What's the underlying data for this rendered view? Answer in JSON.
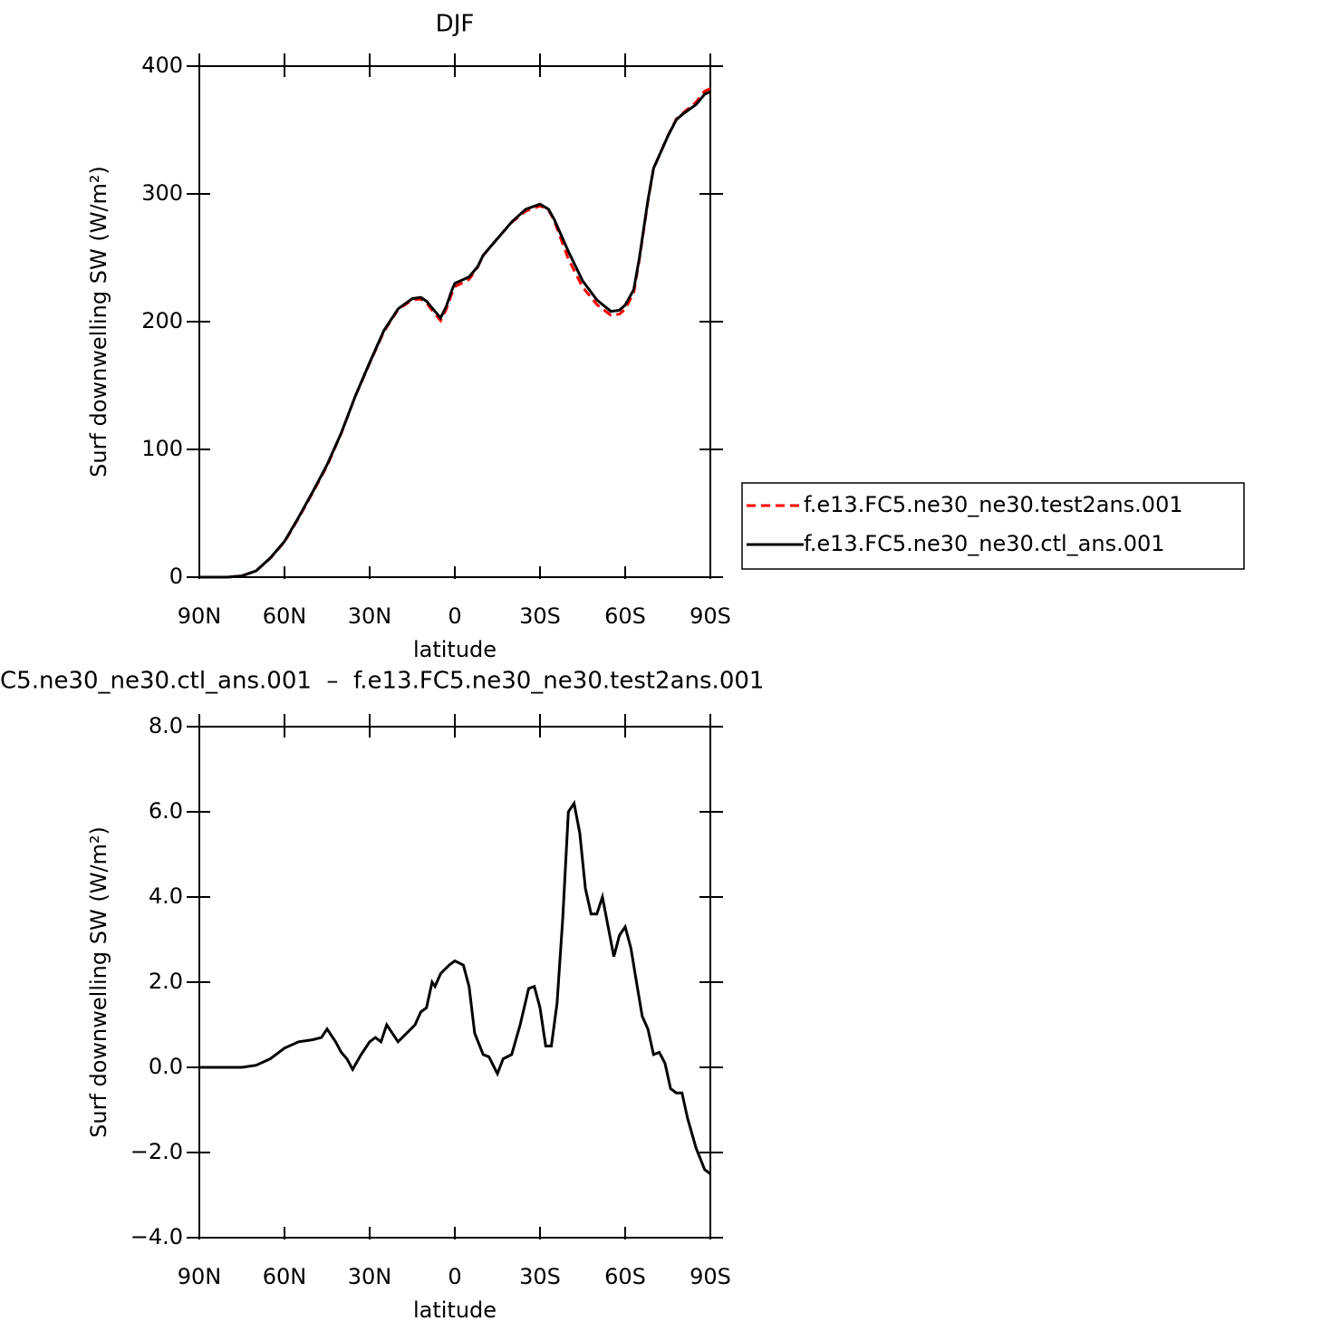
{
  "chart_data": [
    {
      "type": "line",
      "title": "DJF",
      "xlabel": "latitude",
      "ylabel": "Surf downwelling SW (W/m²)",
      "x": [
        90,
        85,
        80,
        75,
        70,
        65,
        60,
        55,
        50,
        45,
        40,
        35,
        30,
        25,
        20,
        15,
        12,
        10,
        7,
        5,
        3,
        1,
        0,
        -3,
        -5,
        -8,
        -10,
        -15,
        -20,
        -25,
        -30,
        -33,
        -35,
        -40,
        -45,
        -50,
        -55,
        -58,
        -60,
        -63,
        -65,
        -68,
        -70,
        -75,
        -78,
        -80,
        -85,
        -88,
        -90
      ],
      "series": [
        {
          "name": "f.e13.FC5.ne30_ne30.test2ans.001",
          "color": "#ff0000",
          "dashed": true,
          "values": [
            0,
            0,
            0,
            1,
            5,
            14.8,
            27.5,
            46.4,
            66.3,
            87.1,
            112.6,
            142,
            167.4,
            192.2,
            209.4,
            217.1,
            217.7,
            214.6,
            206.1,
            200.8,
            209.8,
            222.5,
            227.5,
            230.6,
            233.1,
            242.5,
            251.7,
            265.1,
            277.7,
            286.5,
            290.6,
            287.5,
            279,
            249,
            227,
            213.4,
            205,
            205.9,
            209.7,
            222.6,
            248.8,
            294.1,
            319.7,
            345.3,
            358.6,
            362.6,
            371.9,
            380.4,
            382.5
          ]
        },
        {
          "name": "f.e13.FC5.ne30_ne30.ctl_ans.001",
          "color": "#000000",
          "dashed": false,
          "values": [
            0,
            0,
            0,
            1,
            5,
            15,
            28,
            47,
            67,
            88,
            113,
            142,
            168,
            193,
            210,
            218,
            219,
            216,
            208,
            203,
            212,
            225,
            230,
            233,
            235,
            243,
            252,
            265,
            278,
            288,
            292,
            288,
            280,
            255,
            232,
            217,
            208,
            209,
            213,
            225,
            250,
            295,
            320,
            345,
            358,
            362,
            370,
            378,
            380
          ]
        }
      ],
      "xlim": [
        90,
        -90
      ],
      "xticks": [
        {
          "value": 90,
          "label": "90N"
        },
        {
          "value": 60,
          "label": "60N"
        },
        {
          "value": 30,
          "label": "30N"
        },
        0,
        {
          "value": -30,
          "label": "30S"
        },
        {
          "value": -60,
          "label": "60S"
        },
        {
          "value": -90,
          "label": "90S"
        }
      ],
      "ylim": [
        0,
        400
      ],
      "yticks": [
        0,
        100,
        200,
        300,
        400
      ],
      "legend": "right"
    },
    {
      "type": "line",
      "title": "C5.ne30_ne30.ctl_ans.001  –  f.e13.FC5.ne30_ne30.test2ans.001",
      "xlabel": "latitude",
      "ylabel": "Surf downwelling SW (W/m²)",
      "x": [
        90,
        85,
        80,
        75,
        70,
        65,
        60,
        55,
        50,
        47,
        45,
        42,
        40,
        38,
        36,
        33,
        30,
        28,
        26,
        24,
        22,
        20,
        17,
        14,
        12,
        10,
        8,
        7,
        5,
        2,
        0,
        -3,
        -5,
        -7,
        -10,
        -12,
        -15,
        -17,
        -20,
        -23,
        -26,
        -28,
        -30,
        -32,
        -34,
        -36,
        -38,
        -40,
        -42,
        -44,
        -46,
        -48,
        -50,
        -52,
        -54,
        -56,
        -58,
        -60,
        -62,
        -64,
        -66,
        -68,
        -70,
        -72,
        -74,
        -76,
        -78,
        -80,
        -82,
        -85,
        -88,
        -90
      ],
      "values": [
        0,
        0,
        0,
        0,
        0.05,
        0.2,
        0.45,
        0.6,
        0.65,
        0.7,
        0.9,
        0.6,
        0.35,
        0.2,
        -0.05,
        0.3,
        0.6,
        0.7,
        0.6,
        1.0,
        0.8,
        0.6,
        0.8,
        1.0,
        1.3,
        1.4,
        2.0,
        1.9,
        2.2,
        2.4,
        2.5,
        2.4,
        1.9,
        0.8,
        0.3,
        0.25,
        -0.15,
        0.2,
        0.3,
        1.0,
        1.85,
        1.9,
        1.4,
        0.5,
        0.5,
        1.5,
        3.5,
        6.0,
        6.2,
        5.5,
        4.2,
        3.6,
        3.6,
        4.0,
        3.3,
        2.6,
        3.1,
        3.3,
        2.8,
        2.0,
        1.2,
        0.9,
        0.3,
        0.35,
        0.1,
        -0.5,
        -0.6,
        -0.6,
        -1.2,
        -1.9,
        -2.4,
        -2.5
      ],
      "color": "#000000",
      "xlim": [
        90,
        -90
      ],
      "xticks": [
        {
          "value": 90,
          "label": "90N"
        },
        {
          "value": 60,
          "label": "60N"
        },
        {
          "value": 30,
          "label": "30N"
        },
        0,
        {
          "value": -30,
          "label": "30S"
        },
        {
          "value": -60,
          "label": "60S"
        },
        {
          "value": -90,
          "label": "90S"
        }
      ],
      "ylim": [
        -4,
        8
      ],
      "yticks": [
        {
          "value": -4,
          "label": "−4.0"
        },
        {
          "value": -2,
          "label": "−2.0"
        },
        {
          "value": 0,
          "label": "0.0"
        },
        {
          "value": 2,
          "label": "2.0"
        },
        {
          "value": 4,
          "label": "4.0"
        },
        {
          "value": 6,
          "label": "6.0"
        },
        {
          "value": 8,
          "label": "8.0"
        }
      ]
    }
  ]
}
